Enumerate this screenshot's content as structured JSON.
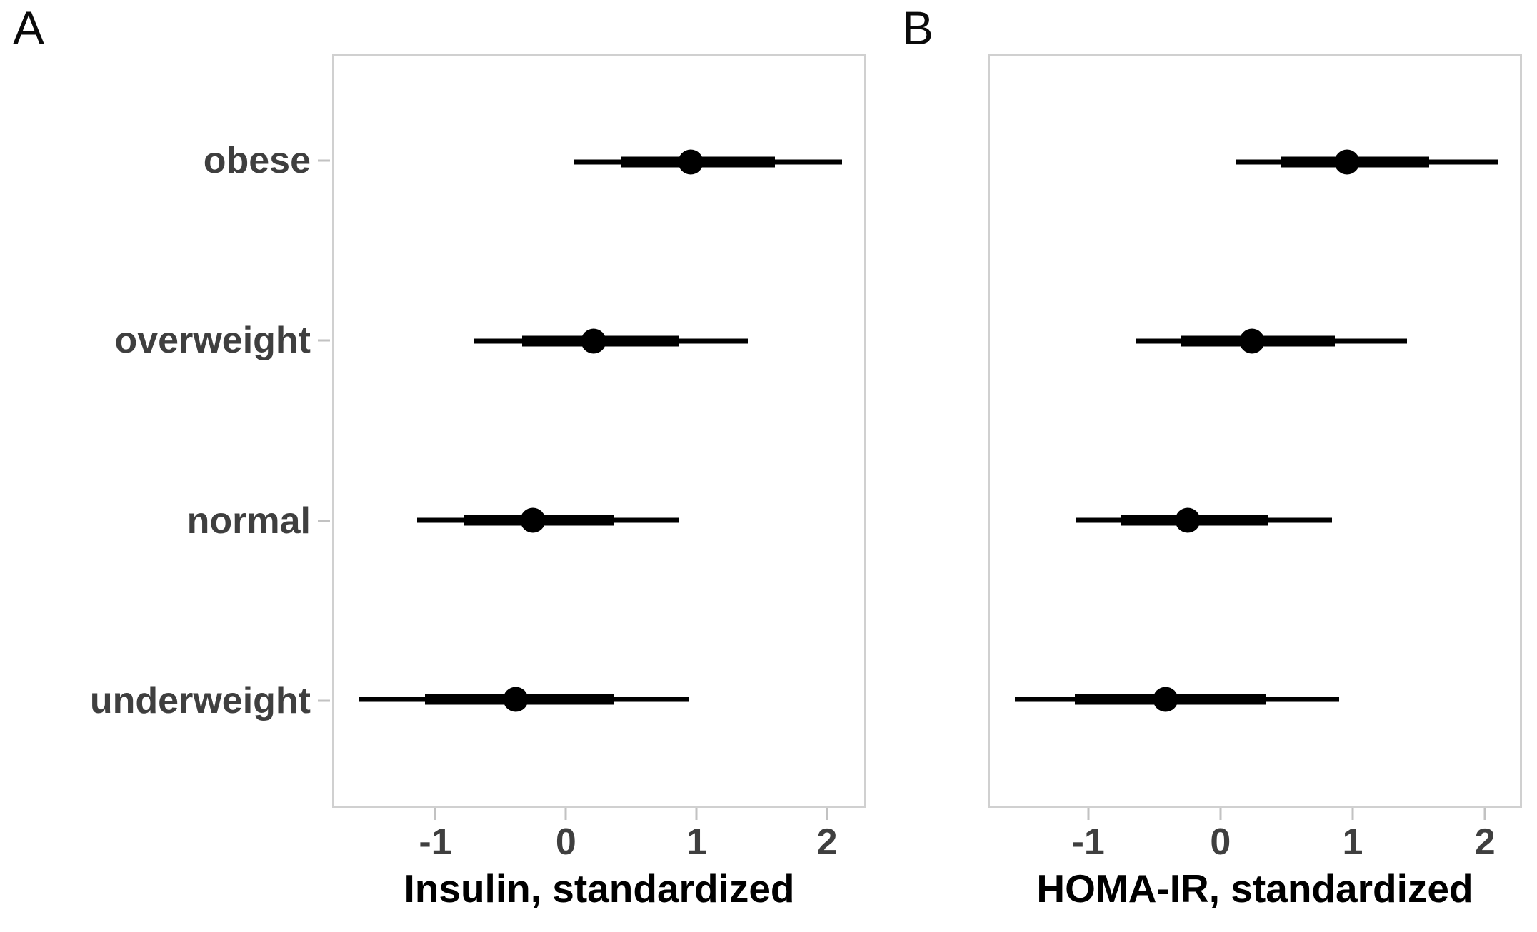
{
  "figure": {
    "panels": [
      {
        "label": "A",
        "show_category_labels": true
      },
      {
        "label": "B",
        "show_category_labels": false
      }
    ],
    "colors": {
      "point": "#000000",
      "interval": "#000000",
      "axis_text": "#3f3f3f",
      "category_text": "#3f3f3f",
      "panel_border": "#d0d0d0",
      "tick_mark": "#c2c2c2",
      "background": "#ffffff"
    }
  },
  "chart_data": [
    {
      "type": "scatter",
      "subtype": "point-interval-forest",
      "title": "A",
      "xlabel": "Insulin, standardized",
      "ylabel": "",
      "categories": [
        "obese",
        "overweight",
        "normal",
        "underweight"
      ],
      "points": [
        0.96,
        0.21,
        -0.26,
        -0.39
      ],
      "inner_intervals": [
        [
          0.42,
          1.61
        ],
        [
          -0.34,
          0.87
        ],
        [
          -0.79,
          0.37
        ],
        [
          -1.09,
          0.37
        ]
      ],
      "outer_intervals": [
        [
          0.06,
          2.13
        ],
        [
          -0.71,
          1.4
        ],
        [
          -1.15,
          0.87
        ],
        [
          -1.6,
          0.95
        ]
      ],
      "xticks": [
        -1,
        0,
        1,
        2
      ],
      "xlim": [
        -1.79,
        2.3
      ],
      "grid": false,
      "legend_position": "none"
    },
    {
      "type": "scatter",
      "subtype": "point-interval-forest",
      "title": "B",
      "xlabel": "HOMA-IR, standardized",
      "ylabel": "",
      "categories": [
        "obese",
        "overweight",
        "normal",
        "underweight"
      ],
      "points": [
        0.96,
        0.24,
        -0.25,
        -0.42
      ],
      "inner_intervals": [
        [
          0.46,
          1.59
        ],
        [
          -0.3,
          0.87
        ],
        [
          -0.76,
          0.36
        ],
        [
          -1.11,
          0.34
        ]
      ],
      "outer_intervals": [
        [
          0.12,
          2.11
        ],
        [
          -0.65,
          1.42
        ],
        [
          -1.1,
          0.85
        ],
        [
          -1.57,
          0.9
        ]
      ],
      "xticks": [
        -1,
        0,
        1,
        2
      ],
      "xlim": [
        -1.76,
        2.28
      ],
      "grid": false,
      "legend_position": "none"
    }
  ]
}
